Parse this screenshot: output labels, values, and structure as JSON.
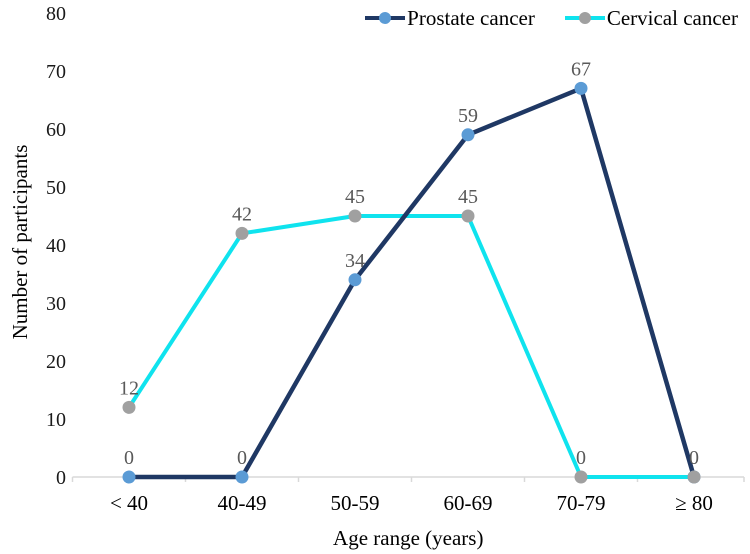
{
  "chart_data": {
    "type": "line",
    "categories": [
      "< 40",
      "40-49",
      "50-59",
      "60-69",
      "70-79",
      "≥ 80"
    ],
    "series": [
      {
        "name": "Prostate cancer",
        "values": [
          0,
          0,
          34,
          59,
          67,
          0
        ],
        "data_labels": [
          "0",
          "0",
          "34",
          "59",
          "67",
          "0"
        ],
        "line_color": "#1F3864",
        "marker_color": "#5B9BD5"
      },
      {
        "name": "Cervical cancer",
        "values": [
          12,
          42,
          45,
          45,
          0,
          0
        ],
        "data_labels": [
          "12",
          "42",
          "45",
          "45",
          "0",
          ""
        ],
        "line_color": "#0FE3EE",
        "marker_color": "#A0A0A0"
      }
    ],
    "xlabel": "Age range (years)",
    "ylabel": "Number of participants",
    "ylim": [
      0,
      80
    ],
    "yticks": [
      "0",
      "10",
      "20",
      "30",
      "40",
      "50",
      "60",
      "70",
      "80"
    ],
    "ytick_step": 10,
    "grid": false,
    "legend_position": "top-right",
    "colors": {
      "axis_line": "#D9D9D9",
      "tick_label": "#1A1A1A",
      "axis_title": "#000000",
      "data_label": "#595959"
    }
  }
}
